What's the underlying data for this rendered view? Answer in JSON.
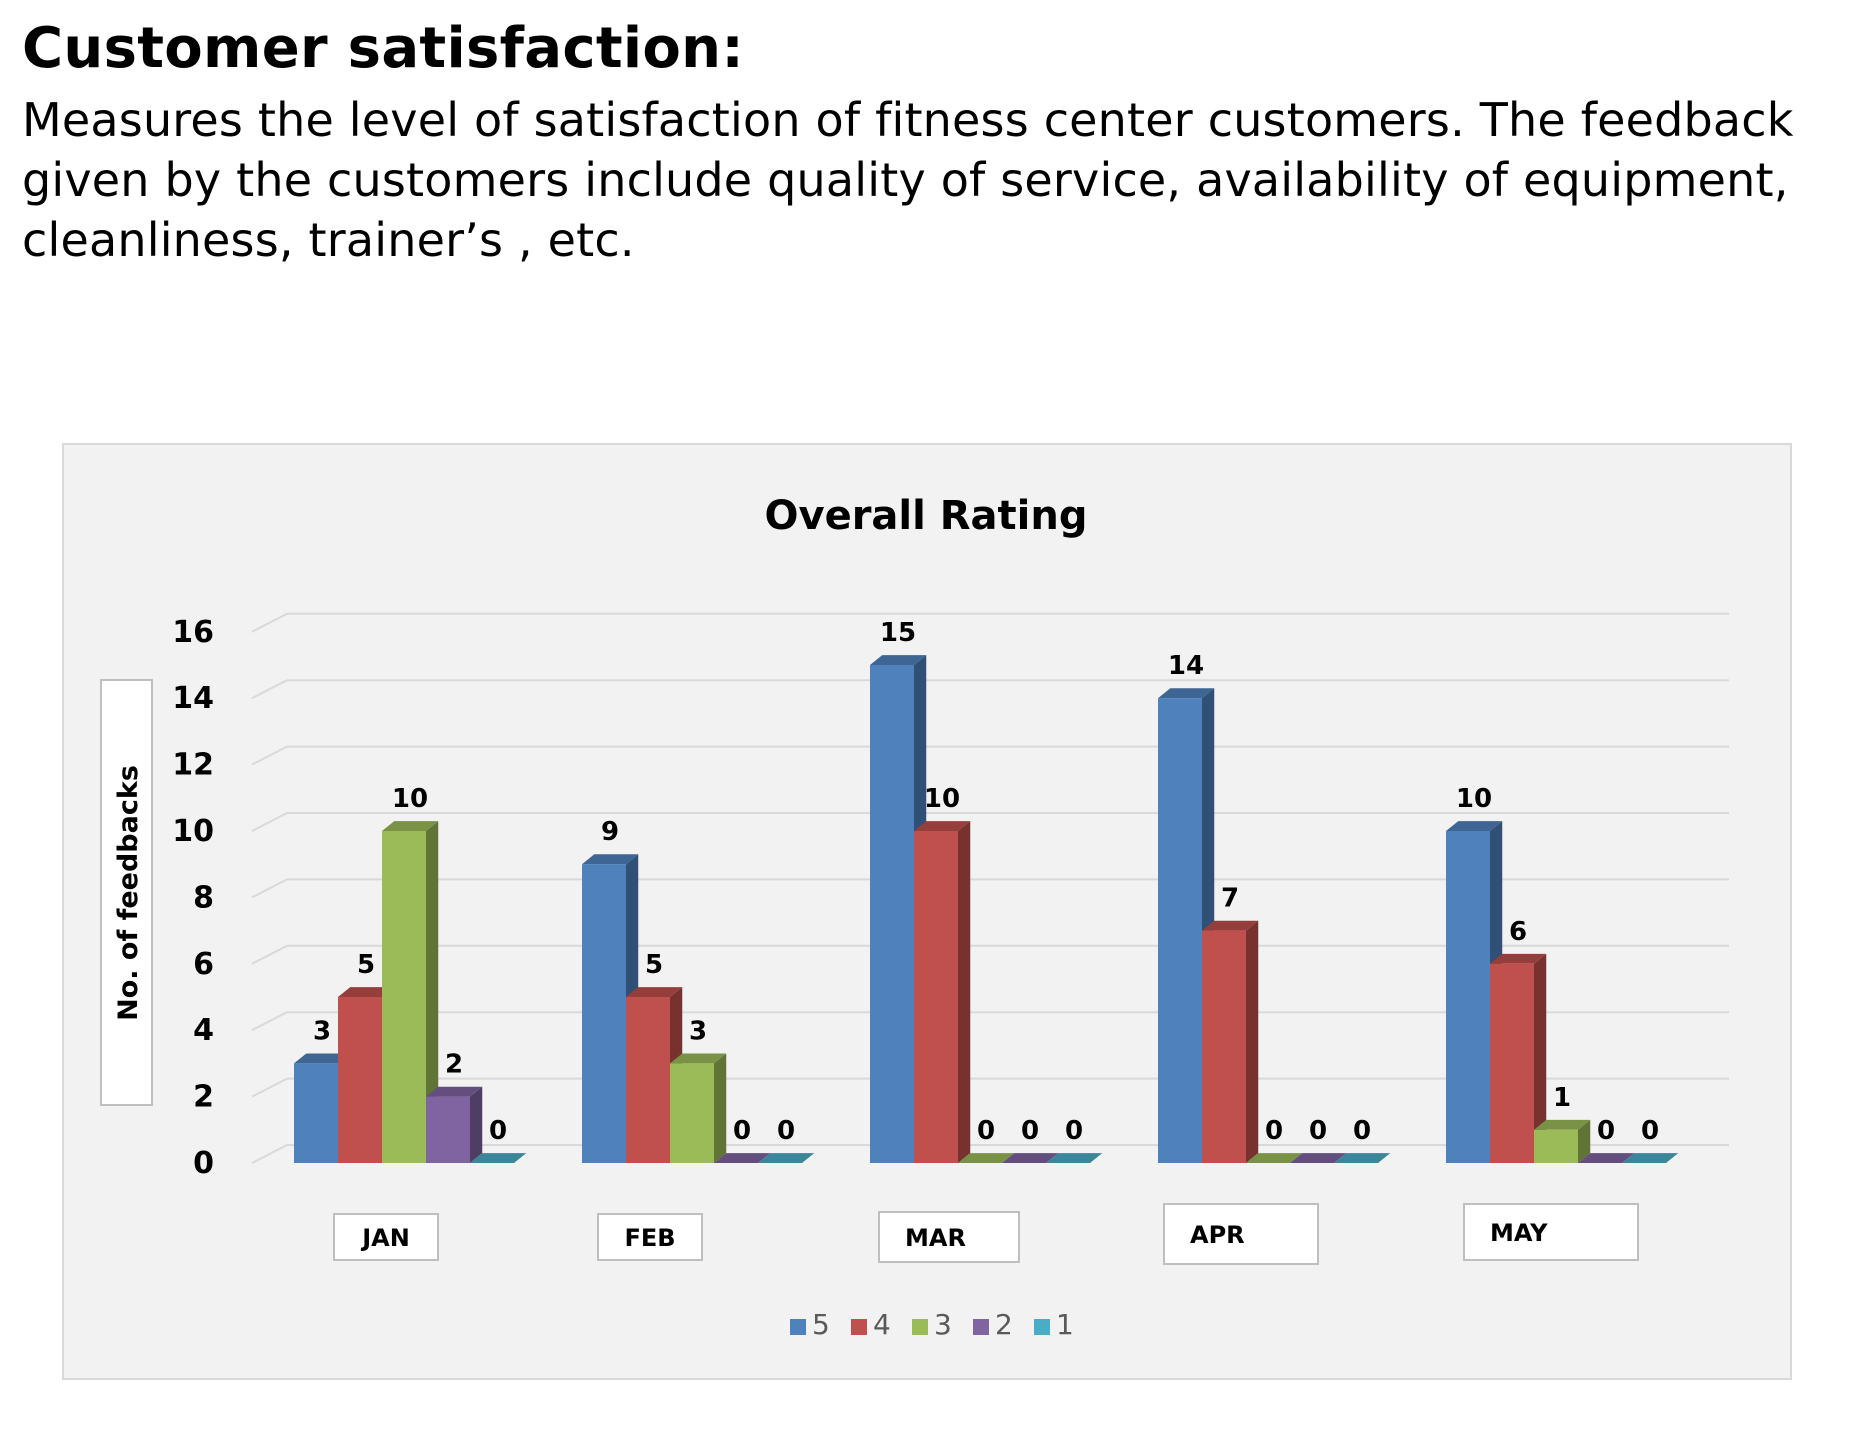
{
  "heading": "Customer satisfaction:",
  "description": "Measures the level of satisfaction of fitness center customers. The feedback given by the customers include quality of service, availability of equipment, cleanliness, trainer’s , etc.",
  "chart_data": {
    "type": "bar",
    "title": "Overall Rating",
    "xlabel": "",
    "ylabel": "No. of feedbacks",
    "categories": [
      "JAN",
      "FEB",
      "MAR",
      "APR",
      "MAY"
    ],
    "series": [
      {
        "name": "5",
        "color": "#4f81bd",
        "values": [
          3,
          9,
          15,
          14,
          10
        ]
      },
      {
        "name": "4",
        "color": "#c0504d",
        "values": [
          5,
          5,
          10,
          7,
          6
        ]
      },
      {
        "name": "3",
        "color": "#9bbb59",
        "values": [
          10,
          3,
          0,
          0,
          1
        ]
      },
      {
        "name": "2",
        "color": "#8064a2",
        "values": [
          2,
          0,
          0,
          0,
          0
        ]
      },
      {
        "name": "1",
        "color": "#4bacc6",
        "values": [
          0,
          0,
          0,
          0,
          0
        ]
      }
    ],
    "ylim": [
      0,
      16
    ],
    "yticks": [
      0,
      2,
      4,
      6,
      8,
      10,
      12,
      14,
      16
    ],
    "grid": true,
    "legend": "bottom",
    "style": "3d-clustered-column",
    "data_labels": [
      [
        "3",
        "5",
        "10",
        "2",
        "0"
      ],
      [
        "9",
        "5",
        "3",
        "0",
        "0"
      ],
      [
        "15",
        "10",
        "0",
        "0",
        "0"
      ],
      [
        "14",
        "7",
        "0",
        "0",
        "0"
      ],
      [
        "10",
        "6",
        "1",
        "0",
        "0"
      ]
    ]
  }
}
